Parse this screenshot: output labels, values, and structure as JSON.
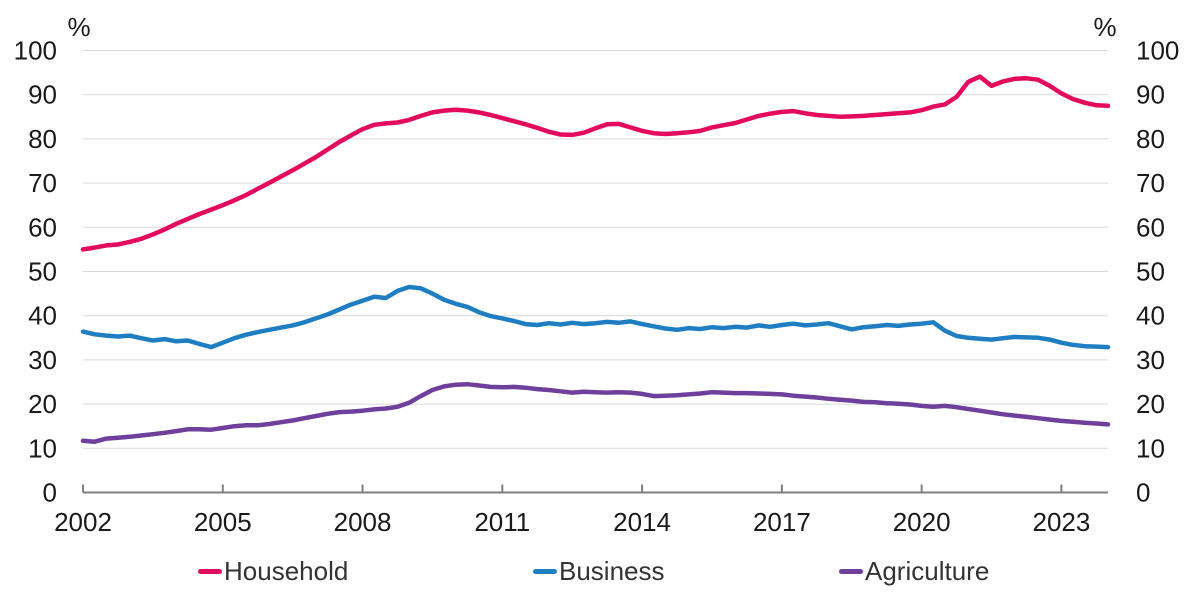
{
  "chart_data": {
    "type": "line",
    "title": "",
    "unit_label": "%",
    "xlabel": "",
    "ylabel": "%",
    "xlim": [
      2002,
      2024
    ],
    "ylim": [
      0,
      100
    ],
    "grid": "horizontal",
    "legend_position": "bottom",
    "xticks": [
      2002,
      2005,
      2008,
      2011,
      2014,
      2017,
      2020,
      2023
    ],
    "yticks": [
      0,
      10,
      20,
      30,
      40,
      50,
      60,
      70,
      80,
      90,
      100
    ],
    "colors": {
      "grid": "#D9D9D9",
      "axis": "#7F7F7F",
      "tick_text": "#1A1A1A",
      "legend_text": "#333333"
    },
    "x": [
      2002.0,
      2002.25,
      2002.5,
      2002.75,
      2003.0,
      2003.25,
      2003.5,
      2003.75,
      2004.0,
      2004.25,
      2004.5,
      2004.75,
      2005.0,
      2005.25,
      2005.5,
      2005.75,
      2006.0,
      2006.25,
      2006.5,
      2006.75,
      2007.0,
      2007.25,
      2007.5,
      2007.75,
      2008.0,
      2008.25,
      2008.5,
      2008.75,
      2009.0,
      2009.25,
      2009.5,
      2009.75,
      2010.0,
      2010.25,
      2010.5,
      2010.75,
      2011.0,
      2011.25,
      2011.5,
      2011.75,
      2012.0,
      2012.25,
      2012.5,
      2012.75,
      2013.0,
      2013.25,
      2013.5,
      2013.75,
      2014.0,
      2014.25,
      2014.5,
      2014.75,
      2015.0,
      2015.25,
      2015.5,
      2015.75,
      2016.0,
      2016.25,
      2016.5,
      2016.75,
      2017.0,
      2017.25,
      2017.5,
      2017.75,
      2018.0,
      2018.25,
      2018.5,
      2018.75,
      2019.0,
      2019.25,
      2019.5,
      2019.75,
      2020.0,
      2020.25,
      2020.5,
      2020.75,
      2021.0,
      2021.25,
      2021.5,
      2021.75,
      2022.0,
      2022.25,
      2022.5,
      2022.75,
      2023.0,
      2023.25,
      2023.5,
      2023.75,
      2024.0
    ],
    "series": [
      {
        "name": "Household",
        "color": "#E40A5D",
        "values": [
          55.0,
          55.4,
          55.9,
          56.1,
          56.7,
          57.4,
          58.4,
          59.5,
          60.8,
          61.9,
          63.0,
          64.0,
          65.0,
          66.1,
          67.3,
          68.7,
          70.1,
          71.5,
          72.9,
          74.4,
          75.9,
          77.6,
          79.3,
          80.8,
          82.2,
          83.2,
          83.5,
          83.7,
          84.3,
          85.2,
          86.0,
          86.4,
          86.6,
          86.4,
          86.0,
          85.4,
          84.7,
          84.0,
          83.3,
          82.5,
          81.6,
          81.0,
          80.9,
          81.4,
          82.4,
          83.3,
          83.4,
          82.6,
          81.8,
          81.3,
          81.1,
          81.3,
          81.5,
          81.8,
          82.6,
          83.1,
          83.6,
          84.4,
          85.2,
          85.7,
          86.1,
          86.3,
          85.8,
          85.4,
          85.2,
          85.0,
          85.1,
          85.2,
          85.4,
          85.6,
          85.8,
          86.0,
          86.5,
          87.3,
          87.8,
          89.5,
          92.9,
          94.1,
          92.0,
          93.0,
          93.6,
          93.7,
          93.4,
          92.0,
          90.3,
          89.0,
          88.2,
          87.6,
          87.5
        ]
      },
      {
        "name": "Business",
        "color": "#1F7EC2",
        "values": [
          36.4,
          35.8,
          35.5,
          35.3,
          35.5,
          34.9,
          34.4,
          34.7,
          34.2,
          34.4,
          33.6,
          32.9,
          33.9,
          34.9,
          35.7,
          36.3,
          36.8,
          37.3,
          37.8,
          38.5,
          39.4,
          40.3,
          41.4,
          42.5,
          43.4,
          44.3,
          44.0,
          45.6,
          46.5,
          46.2,
          45.0,
          43.6,
          42.7,
          42.0,
          40.8,
          39.9,
          39.4,
          38.8,
          38.1,
          37.9,
          38.3,
          38.0,
          38.4,
          38.1,
          38.3,
          38.6,
          38.4,
          38.7,
          38.1,
          37.6,
          37.1,
          36.8,
          37.2,
          37.0,
          37.4,
          37.2,
          37.5,
          37.3,
          37.8,
          37.5,
          37.9,
          38.2,
          37.8,
          38.0,
          38.3,
          37.6,
          36.9,
          37.4,
          37.6,
          37.9,
          37.7,
          38.0,
          38.2,
          38.5,
          36.6,
          35.4,
          35.0,
          34.8,
          34.6,
          34.9,
          35.2,
          35.1,
          35.0,
          34.6,
          33.9,
          33.4,
          33.1,
          33.0,
          32.9
        ]
      },
      {
        "name": "Agriculture",
        "color": "#6F3F9C",
        "values": [
          11.7,
          11.5,
          12.2,
          12.4,
          12.6,
          12.9,
          13.2,
          13.5,
          13.9,
          14.3,
          14.3,
          14.2,
          14.6,
          15.0,
          15.2,
          15.2,
          15.5,
          15.9,
          16.3,
          16.8,
          17.3,
          17.8,
          18.2,
          18.3,
          18.5,
          18.8,
          19.0,
          19.4,
          20.3,
          21.8,
          23.2,
          24.0,
          24.4,
          24.5,
          24.2,
          23.9,
          23.8,
          23.9,
          23.7,
          23.4,
          23.2,
          22.9,
          22.6,
          22.8,
          22.7,
          22.6,
          22.7,
          22.6,
          22.3,
          21.8,
          21.9,
          22.0,
          22.2,
          22.4,
          22.7,
          22.6,
          22.5,
          22.5,
          22.4,
          22.3,
          22.2,
          21.9,
          21.7,
          21.5,
          21.2,
          21.0,
          20.8,
          20.5,
          20.4,
          20.2,
          20.1,
          19.9,
          19.6,
          19.4,
          19.6,
          19.3,
          18.9,
          18.5,
          18.1,
          17.7,
          17.4,
          17.1,
          16.8,
          16.5,
          16.2,
          16.0,
          15.8,
          15.6,
          15.4
        ]
      }
    ]
  },
  "legend": {
    "items": [
      {
        "label": "Household"
      },
      {
        "label": "Business"
      },
      {
        "label": "Agriculture"
      }
    ]
  }
}
